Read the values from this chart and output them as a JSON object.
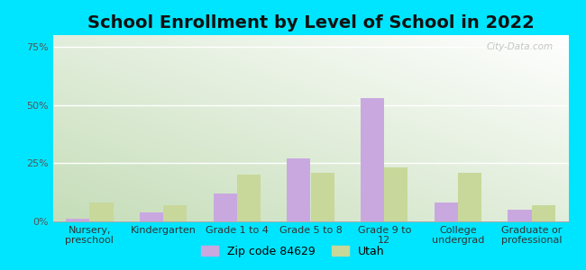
{
  "title": "School Enrollment by Level of School in 2022",
  "categories": [
    "Nursery,\npreschool",
    "Kindergarten",
    "Grade 1 to 4",
    "Grade 5 to 8",
    "Grade 9 to\n12",
    "College\nundergrad",
    "Graduate or\nprofessional"
  ],
  "zip_values": [
    1.0,
    4.0,
    12.0,
    27.0,
    53.0,
    8.0,
    5.0
  ],
  "utah_values": [
    8.0,
    7.0,
    20.0,
    21.0,
    23.0,
    21.0,
    7.0
  ],
  "zip_color": "#c9a8e0",
  "utah_color": "#c8d89a",
  "background_color": "#00e5ff",
  "yticks": [
    0,
    25,
    50,
    75
  ],
  "ylim": [
    0,
    80
  ],
  "zip_label": "Zip code 84629",
  "utah_label": "Utah",
  "watermark": "City-Data.com",
  "title_fontsize": 14,
  "tick_fontsize": 8.0,
  "legend_fontsize": 9,
  "bar_width": 0.32,
  "grad_color_bottom_left": "#c5ddb8",
  "grad_color_top_right": "#f8fff8"
}
